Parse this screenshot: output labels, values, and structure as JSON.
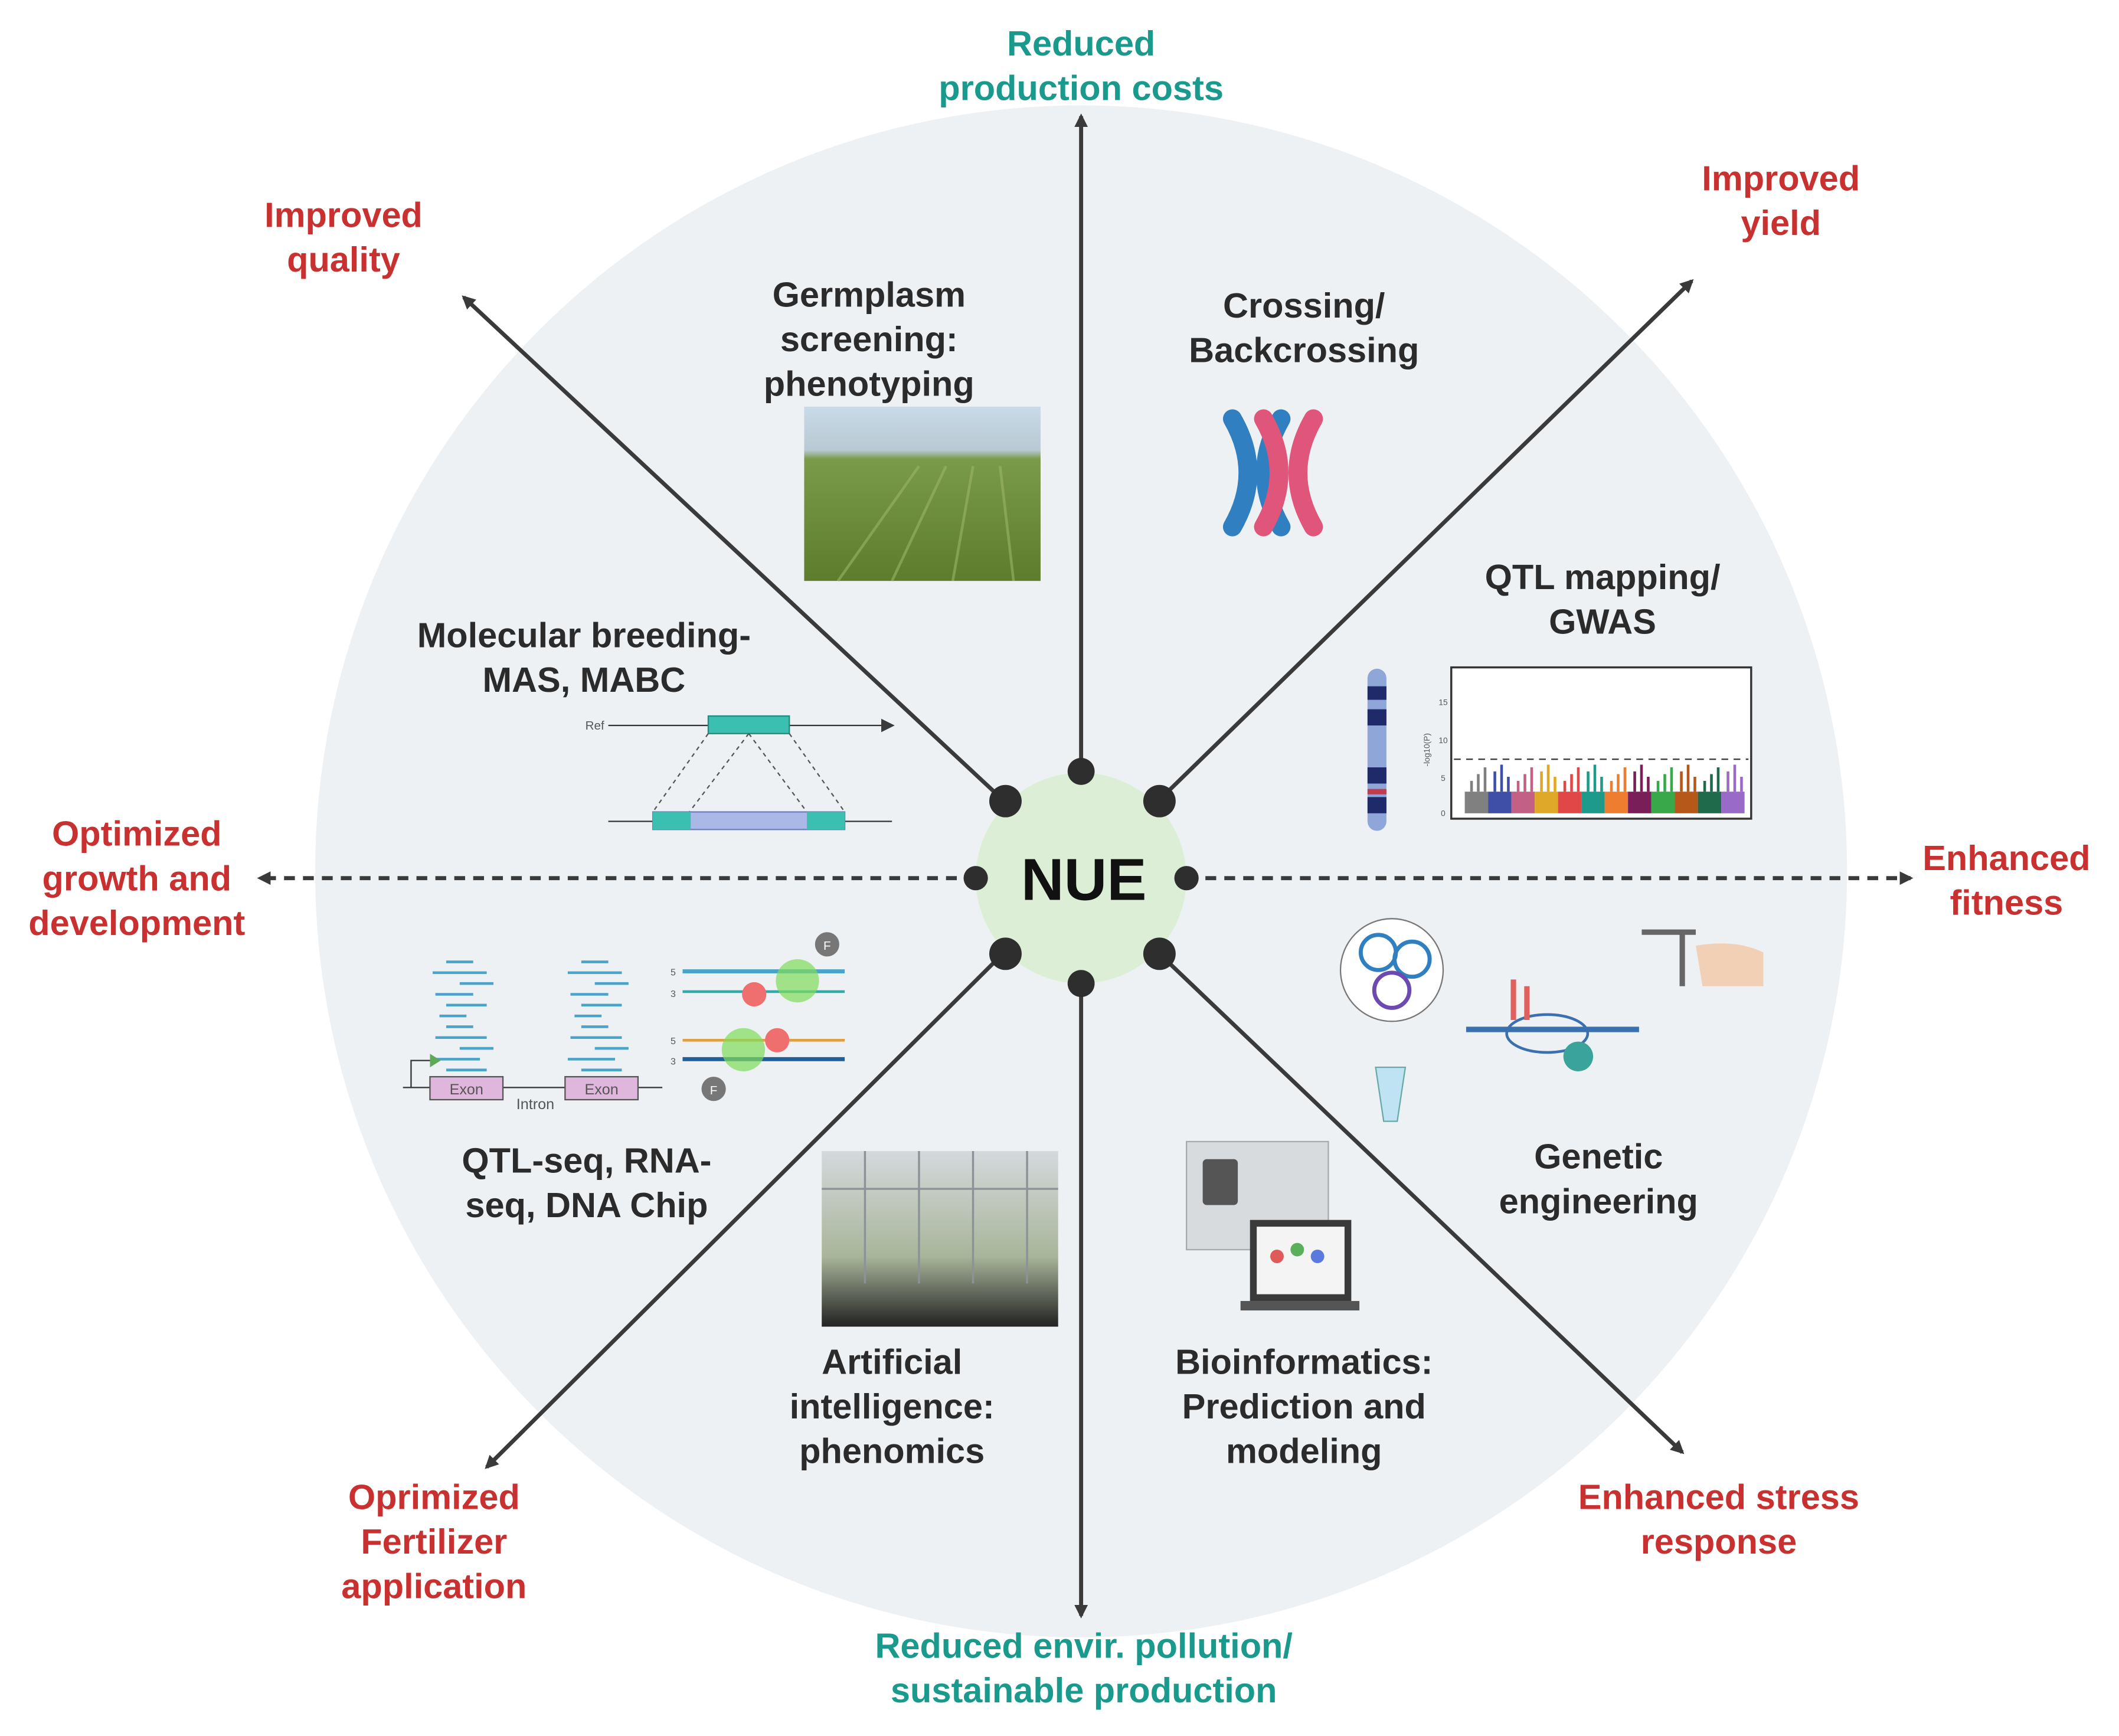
{
  "center": {
    "label": "NUE",
    "fill": "#dcefd6"
  },
  "colors": {
    "outcome_red": "#c8312f",
    "outcome_teal": "#1a9a8c",
    "circle_bg": "#eef1f4",
    "arrow": "#3a3a3a"
  },
  "outcomes": {
    "top": [
      "Reduced",
      "production costs"
    ],
    "top_right": [
      "Improved",
      "yield"
    ],
    "right": [
      "Enhanced",
      "fitness"
    ],
    "bottom_right": [
      "Enhanced stress",
      "response"
    ],
    "bottom": [
      "Reduced envir. pollution/",
      "sustainable production"
    ],
    "bottom_left": [
      "Oprimized",
      "Fertilizer",
      "application"
    ],
    "left": [
      "Optimized",
      "growth and",
      "development"
    ],
    "top_left": [
      "Improved",
      "quality"
    ]
  },
  "approaches": {
    "germplasm": [
      "Germplasm",
      "screening:",
      "phenotyping"
    ],
    "crossing": [
      "Crossing/",
      "Backcrossing"
    ],
    "qtl_mapping": [
      "QTL mapping/",
      "GWAS"
    ],
    "genetic_engineering": [
      "Genetic",
      "engineering"
    ],
    "bioinformatics": [
      "Bioinformatics:",
      "Prediction and",
      "modeling"
    ],
    "ai": [
      "Artificial",
      "intelligence:",
      "phenomics"
    ],
    "qtl_seq": [
      "QTL-seq, RNA-",
      "seq, DNA Chip"
    ],
    "molecular_breeding": [
      "Molecular breeding-",
      "MAS, MABC"
    ]
  },
  "illustrations": {
    "ref_label": "Ref",
    "exon_label": "Exon",
    "intron_label": "Intron",
    "probe_label": "F",
    "strand_5": "5",
    "strand_3": "3",
    "manhattan_yticks": [
      "15",
      "10",
      "5",
      "0"
    ],
    "manhattan_ylabel": "-log10(P)"
  }
}
